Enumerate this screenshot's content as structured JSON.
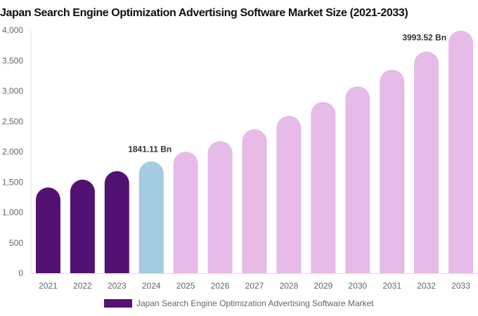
{
  "chart_data": {
    "type": "bar",
    "title": "Japan Search Engine Optimization Advertising Software Market Size (2021-2033)",
    "categories": [
      "2021",
      "2022",
      "2023",
      "2024",
      "2025",
      "2026",
      "2027",
      "2028",
      "2029",
      "2030",
      "2031",
      "2032",
      "2033"
    ],
    "series": [
      {
        "name": "Japan Search Engine Optimization Advertising Software Market",
        "values": [
          1410,
          1540,
          1680,
          1841.11,
          2000,
          2175,
          2370,
          2590,
          2820,
          3075,
          3350,
          3650,
          3993.52
        ]
      }
    ],
    "data_labels": {
      "3": "1841.11 Bn",
      "12": "3993.52 Bn"
    },
    "ylim": [
      0,
      4000
    ],
    "yticks": [
      0,
      500,
      1000,
      1500,
      2000,
      2500,
      3000,
      3500,
      4000
    ],
    "ytick_labels": [
      "0",
      "500",
      "1,000",
      "1,500",
      "2,000",
      "2,500",
      "3,000",
      "3,500",
      "4,000"
    ],
    "xlabel": "",
    "ylabel": "",
    "grid": false,
    "legend_position": "bottom",
    "colors": {
      "historical": "#531273",
      "current": "#a4cbe0",
      "forecast": "#e6bbe8"
    }
  }
}
